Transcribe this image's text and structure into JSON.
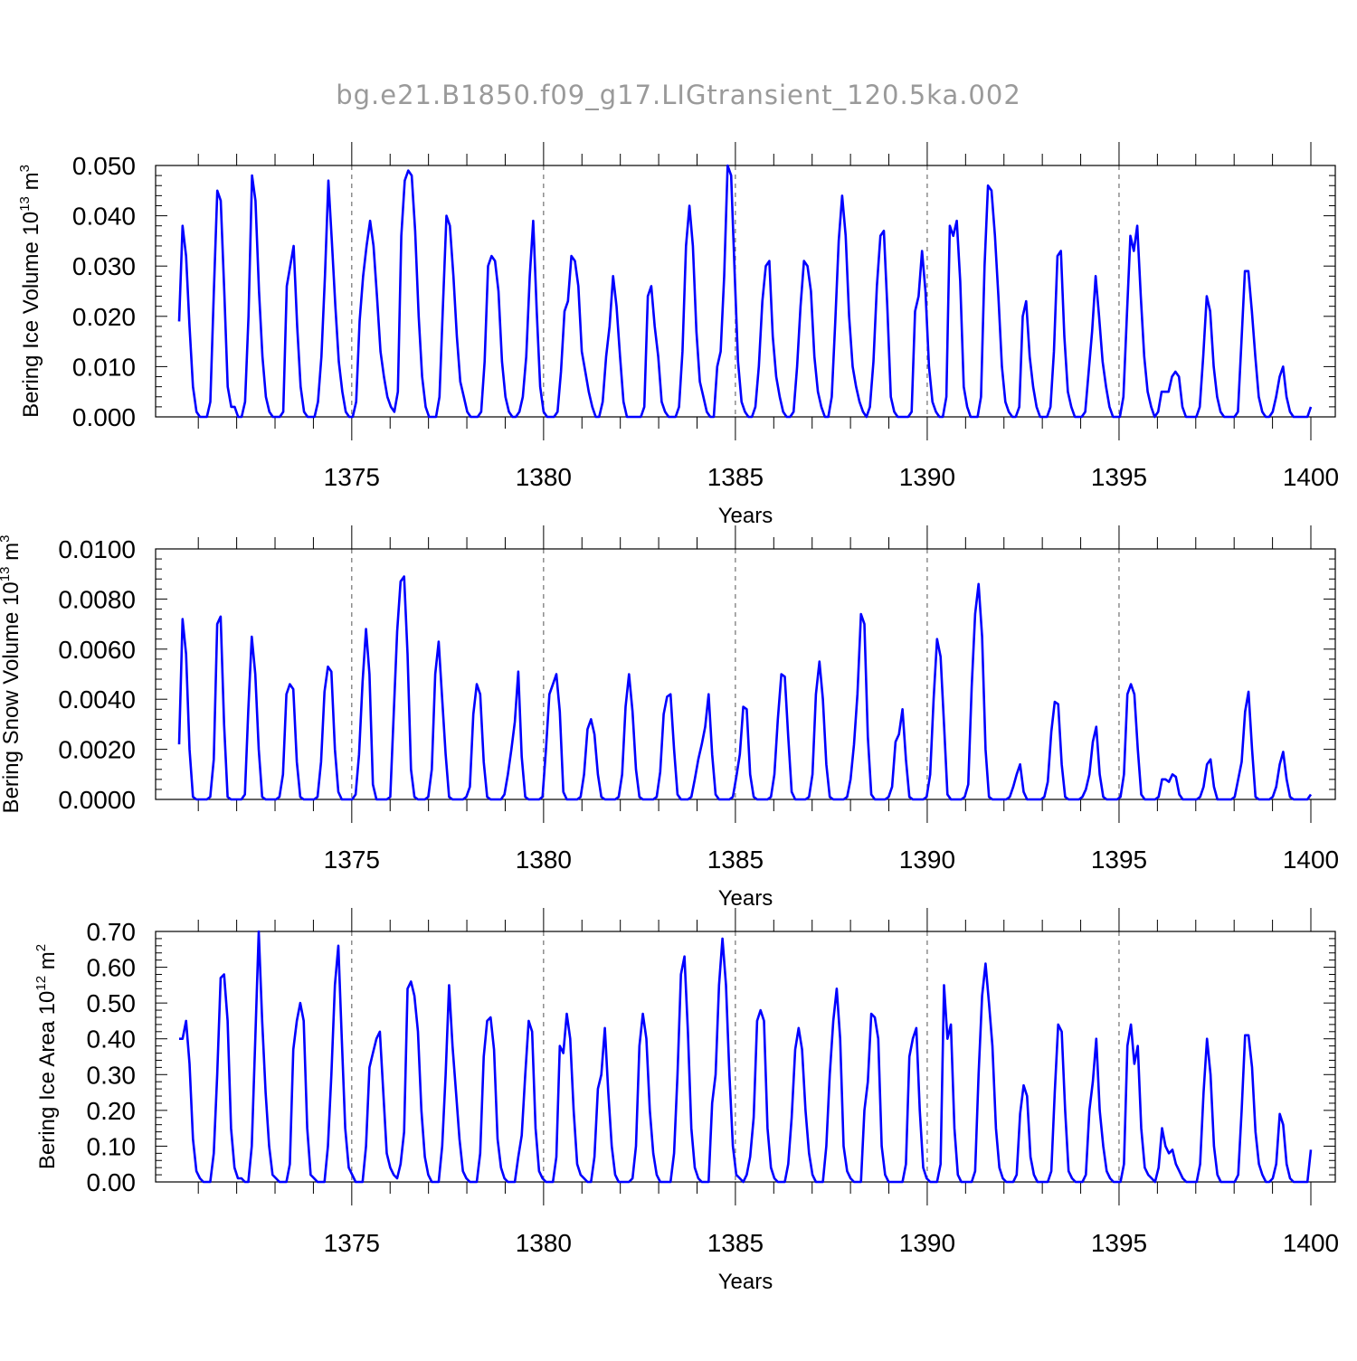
{
  "title": "bg.e21.B1850.f09_g17.LIGtransient_120.5ka.002",
  "colors": {
    "series": "#0000ff",
    "axis": "#000000",
    "grid": "#555555",
    "title": "#9a9a9a"
  },
  "chart_data": [
    {
      "type": "line",
      "title": "bg.e21.B1850.f09_g17.LIGtransient_120.5ka.002",
      "xlabel": "Years",
      "ylabel": "Bering Ice Volume 10",
      "ylabel_sup": "13",
      "ylabel_unit": "m",
      "ylabel_unit_sup": "3",
      "xlim": [
        1370.5,
        1400.0
      ],
      "ylim": [
        0,
        0.05
      ],
      "yticks": [
        "0.000",
        "0.010",
        "0.020",
        "0.030",
        "0.040",
        "0.050"
      ],
      "xticks": [
        "1375",
        "1380",
        "1385",
        "1390",
        "1395",
        "1400"
      ],
      "grid": "vertical dashed at major x ticks",
      "series": [
        {
          "values": [
            0.019,
            0.038,
            0.032,
            0.018,
            0.006,
            0.001,
            0,
            0,
            0,
            0.003,
            0.025,
            0.045,
            0.043,
            0.025,
            0.006,
            0.002,
            0.002,
            0,
            0,
            0.003,
            0.02,
            0.048,
            0.043,
            0.025,
            0.012,
            0.004,
            0.001,
            0,
            0,
            0,
            0.001,
            0.026,
            0.03,
            0.034,
            0.018,
            0.006,
            0.001,
            0,
            0,
            0,
            0.003,
            0.012,
            0.028,
            0.047,
            0.035,
            0.022,
            0.011,
            0.005,
            0.001,
            0,
            0,
            0.003,
            0.019,
            0.028,
            0.034,
            0.039,
            0.034,
            0.024,
            0.013,
            0.008,
            0.004,
            0.002,
            0.001,
            0.005,
            0.036,
            0.047,
            0.049,
            0.048,
            0.037,
            0.02,
            0.008,
            0.002,
            0,
            0,
            0,
            0.004,
            0.022,
            0.04,
            0.038,
            0.028,
            0.016,
            0.007,
            0.004,
            0.001,
            0,
            0,
            0,
            0.001,
            0.011,
            0.03,
            0.032,
            0.031,
            0.025,
            0.011,
            0.004,
            0.001,
            0,
            0,
            0.001,
            0.004,
            0.012,
            0.028,
            0.039,
            0.021,
            0.006,
            0.001,
            0,
            0,
            0,
            0.001,
            0.009,
            0.021,
            0.023,
            0.032,
            0.031,
            0.026,
            0.013,
            0.009,
            0.005,
            0.002,
            0,
            0,
            0.003,
            0.012,
            0.018,
            0.028,
            0.022,
            0.012,
            0.003,
            0,
            0,
            0,
            0,
            0,
            0.002,
            0.024,
            0.026,
            0.018,
            0.012,
            0.003,
            0.001,
            0,
            0,
            0,
            0.002,
            0.013,
            0.034,
            0.042,
            0.034,
            0.017,
            0.007,
            0.004,
            0.001,
            0,
            0,
            0.01,
            0.013,
            0.028,
            0.05,
            0.048,
            0.029,
            0.011,
            0.003,
            0.001,
            0,
            0,
            0.002,
            0.01,
            0.023,
            0.03,
            0.031,
            0.016,
            0.008,
            0.004,
            0.001,
            0,
            0,
            0.001,
            0.01,
            0.022,
            0.031,
            0.03,
            0.025,
            0.012,
            0.005,
            0.002,
            0,
            0,
            0.004,
            0.019,
            0.035,
            0.044,
            0.036,
            0.02,
            0.01,
            0.006,
            0.003,
            0.001,
            0,
            0.002,
            0.011,
            0.026,
            0.036,
            0.037,
            0.022,
            0.004,
            0.001,
            0,
            0,
            0,
            0,
            0.001,
            0.021,
            0.024,
            0.033,
            0.025,
            0.01,
            0.003,
            0.001,
            0,
            0,
            0.004,
            0.038,
            0.036,
            0.039,
            0.027,
            0.006,
            0.002,
            0,
            0,
            0,
            0.004,
            0.03,
            0.046,
            0.045,
            0.036,
            0.024,
            0.01,
            0.003,
            0.001,
            0,
            0,
            0.002,
            0.02,
            0.023,
            0.012,
            0.006,
            0.002,
            0,
            0,
            0,
            0.002,
            0.013,
            0.032,
            0.033,
            0.016,
            0.005,
            0.002,
            0,
            0,
            0,
            0.001,
            0.009,
            0.017,
            0.028,
            0.02,
            0.011,
            0.006,
            0.002,
            0,
            0,
            0,
            0.004,
            0.02,
            0.036,
            0.033,
            0.038,
            0.024,
            0.012,
            0.005,
            0.002,
            0,
            0.001,
            0.005,
            0.005,
            0.005,
            0.008,
            0.009,
            0.008,
            0.002,
            0,
            0,
            0,
            0,
            0.002,
            0.012,
            0.024,
            0.021,
            0.01,
            0.004,
            0.001,
            0,
            0,
            0,
            0,
            0.001,
            0.015,
            0.029,
            0.029,
            0.021,
            0.012,
            0.004,
            0.001,
            0,
            0,
            0.001,
            0.004,
            0.008,
            0.01,
            0.004,
            0.001,
            0,
            0,
            0,
            0,
            0,
            0.002
          ]
        }
      ]
    },
    {
      "type": "line",
      "xlabel": "Years",
      "ylabel": "Bering Snow Volume 10",
      "ylabel_sup": "13",
      "ylabel_unit": "m",
      "ylabel_unit_sup": "3",
      "xlim": [
        1370.5,
        1400.0
      ],
      "ylim": [
        0,
        0.01
      ],
      "yticks": [
        "0.0000",
        "0.0020",
        "0.0040",
        "0.0060",
        "0.0080",
        "0.0100"
      ],
      "xticks": [
        "1375",
        "1380",
        "1385",
        "1390",
        "1395",
        "1400"
      ],
      "grid": "vertical dashed at major x ticks",
      "series": [
        {
          "values": [
            0.0022,
            0.0072,
            0.0058,
            0.002,
            0.0001,
            0,
            0,
            0,
            0,
            0.0001,
            0.0016,
            0.007,
            0.0073,
            0.003,
            0.0001,
            0,
            0,
            0,
            0,
            0.0002,
            0.0036,
            0.0065,
            0.005,
            0.002,
            0.0001,
            0,
            0,
            0,
            0,
            0.0001,
            0.001,
            0.0042,
            0.0046,
            0.0044,
            0.0015,
            0.0001,
            0,
            0,
            0,
            0,
            0.0001,
            0.0015,
            0.0043,
            0.0053,
            0.0051,
            0.002,
            0.0003,
            0,
            0,
            0,
            0,
            0.0002,
            0.0018,
            0.0047,
            0.0068,
            0.005,
            0.0006,
            0,
            0,
            0,
            0,
            0.0001,
            0.0034,
            0.0067,
            0.0087,
            0.0089,
            0.0058,
            0.0012,
            0.0001,
            0,
            0,
            0,
            0.0001,
            0.0012,
            0.005,
            0.0063,
            0.004,
            0.0018,
            0.0001,
            0,
            0,
            0,
            0,
            0.0001,
            0.0005,
            0.0034,
            0.0046,
            0.0042,
            0.0015,
            0.0001,
            0,
            0,
            0,
            0,
            0.0002,
            0.001,
            0.002,
            0.0031,
            0.0051,
            0.0017,
            0.0001,
            0,
            0,
            0,
            0,
            0.0001,
            0.002,
            0.0042,
            0.0046,
            0.005,
            0.0035,
            0.0003,
            0,
            0,
            0,
            0,
            0.0001,
            0.001,
            0.0028,
            0.0032,
            0.0026,
            0.001,
            0.0001,
            0,
            0,
            0,
            0,
            0.0001,
            0.001,
            0.0037,
            0.005,
            0.0035,
            0.0012,
            0.0001,
            0,
            0,
            0,
            0,
            0.0001,
            0.0011,
            0.0034,
            0.0041,
            0.0042,
            0.002,
            0.0002,
            0,
            0,
            0,
            0.0001,
            0.0008,
            0.0016,
            0.0022,
            0.0029,
            0.0042,
            0.0018,
            0.0002,
            0,
            0,
            0,
            0,
            0.0001,
            0.0009,
            0.0018,
            0.0037,
            0.0036,
            0.001,
            0.0001,
            0,
            0,
            0,
            0,
            0.0001,
            0.001,
            0.0032,
            0.005,
            0.0049,
            0.0025,
            0.0003,
            0,
            0,
            0,
            0,
            0.0001,
            0.001,
            0.0042,
            0.0055,
            0.004,
            0.0014,
            0.0001,
            0,
            0,
            0,
            0,
            0.0001,
            0.0008,
            0.0022,
            0.0042,
            0.0074,
            0.007,
            0.0025,
            0.0002,
            0,
            0,
            0,
            0,
            0.0001,
            0.0005,
            0.0023,
            0.0026,
            0.0036,
            0.0016,
            0.0001,
            0,
            0,
            0,
            0,
            0.0001,
            0.001,
            0.004,
            0.0064,
            0.0057,
            0.003,
            0.0002,
            0,
            0,
            0,
            0,
            0.0001,
            0.0006,
            0.0045,
            0.0074,
            0.0086,
            0.0065,
            0.002,
            0.0001,
            0,
            0,
            0,
            0,
            0,
            0.0001,
            0.0005,
            0.001,
            0.0014,
            0.0003,
            0,
            0,
            0,
            0,
            0,
            0.0001,
            0.0007,
            0.0027,
            0.0039,
            0.0038,
            0.0014,
            0.0001,
            0,
            0,
            0,
            0,
            0.0001,
            0.0004,
            0.001,
            0.0023,
            0.0029,
            0.001,
            0.0001,
            0,
            0,
            0,
            0,
            0.0001,
            0.001,
            0.0042,
            0.0046,
            0.0042,
            0.002,
            0.0002,
            0,
            0,
            0,
            0,
            0.0001,
            0.0008,
            0.0008,
            0.0007,
            0.001,
            0.0009,
            0.0002,
            0,
            0,
            0,
            0,
            0,
            0.0001,
            0.0005,
            0.0014,
            0.0016,
            0.0005,
            0,
            0,
            0,
            0,
            0,
            0.0001,
            0.0008,
            0.0015,
            0.0035,
            0.0043,
            0.002,
            0.0001,
            0,
            0,
            0,
            0,
            0.0001,
            0.0005,
            0.0014,
            0.0019,
            0.0008,
            0.0001,
            0,
            0,
            0,
            0,
            0,
            0.0002
          ]
        }
      ]
    },
    {
      "type": "line",
      "xlabel": "Years",
      "ylabel": "Bering Ice Area 10",
      "ylabel_sup": "12",
      "ylabel_unit": "m",
      "ylabel_unit_sup": "2",
      "xlim": [
        1370.5,
        1400.0
      ],
      "ylim": [
        0,
        0.7
      ],
      "yticks": [
        "0.00",
        "0.10",
        "0.20",
        "0.30",
        "0.40",
        "0.50",
        "0.60",
        "0.70"
      ],
      "xticks": [
        "1375",
        "1380",
        "1385",
        "1390",
        "1395",
        "1400"
      ],
      "grid": "vertical dashed at major x ticks",
      "series": [
        {
          "values": [
            0.4,
            0.4,
            0.45,
            0.33,
            0.12,
            0.03,
            0.01,
            0,
            0,
            0,
            0.08,
            0.3,
            0.57,
            0.58,
            0.45,
            0.15,
            0.04,
            0.01,
            0.01,
            0,
            0,
            0.1,
            0.4,
            0.7,
            0.45,
            0.25,
            0.1,
            0.02,
            0.01,
            0,
            0,
            0,
            0.05,
            0.37,
            0.45,
            0.5,
            0.45,
            0.15,
            0.02,
            0.01,
            0,
            0,
            0,
            0.1,
            0.3,
            0.55,
            0.66,
            0.4,
            0.15,
            0.04,
            0.02,
            0,
            0,
            0,
            0.1,
            0.32,
            0.36,
            0.4,
            0.42,
            0.25,
            0.08,
            0.04,
            0.02,
            0.01,
            0.05,
            0.14,
            0.54,
            0.56,
            0.52,
            0.42,
            0.2,
            0.07,
            0.02,
            0,
            0,
            0,
            0.1,
            0.3,
            0.55,
            0.38,
            0.25,
            0.12,
            0.03,
            0.01,
            0,
            0,
            0,
            0.08,
            0.35,
            0.45,
            0.46,
            0.37,
            0.12,
            0.04,
            0.01,
            0,
            0,
            0,
            0.07,
            0.13,
            0.3,
            0.45,
            0.42,
            0.15,
            0.03,
            0.01,
            0,
            0,
            0,
            0.07,
            0.38,
            0.36,
            0.47,
            0.4,
            0.2,
            0.05,
            0.02,
            0.01,
            0,
            0,
            0.07,
            0.26,
            0.3,
            0.43,
            0.25,
            0.1,
            0.02,
            0,
            0,
            0,
            0,
            0.01,
            0.1,
            0.38,
            0.47,
            0.4,
            0.2,
            0.08,
            0.02,
            0,
            0,
            0,
            0,
            0.08,
            0.3,
            0.58,
            0.63,
            0.42,
            0.15,
            0.04,
            0.01,
            0,
            0,
            0,
            0.22,
            0.3,
            0.55,
            0.68,
            0.55,
            0.3,
            0.1,
            0.02,
            0.01,
            0,
            0.02,
            0.07,
            0.18,
            0.45,
            0.48,
            0.45,
            0.15,
            0.04,
            0.01,
            0,
            0,
            0,
            0.05,
            0.18,
            0.37,
            0.43,
            0.37,
            0.2,
            0.08,
            0.02,
            0,
            0,
            0,
            0.1,
            0.3,
            0.45,
            0.54,
            0.4,
            0.1,
            0.03,
            0.01,
            0,
            0,
            0,
            0.2,
            0.28,
            0.47,
            0.46,
            0.4,
            0.1,
            0.02,
            0,
            0,
            0,
            0,
            0,
            0.05,
            0.35,
            0.4,
            0.43,
            0.2,
            0.04,
            0.01,
            0,
            0,
            0,
            0.05,
            0.55,
            0.4,
            0.44,
            0.15,
            0.02,
            0,
            0,
            0,
            0,
            0.03,
            0.3,
            0.52,
            0.61,
            0.5,
            0.38,
            0.15,
            0.04,
            0.01,
            0,
            0,
            0,
            0.02,
            0.19,
            0.27,
            0.24,
            0.07,
            0.02,
            0,
            0,
            0,
            0,
            0.03,
            0.25,
            0.44,
            0.42,
            0.2,
            0.03,
            0.01,
            0,
            0,
            0,
            0.02,
            0.2,
            0.28,
            0.4,
            0.2,
            0.1,
            0.03,
            0.01,
            0,
            0,
            0,
            0.05,
            0.38,
            0.44,
            0.33,
            0.38,
            0.15,
            0.04,
            0.02,
            0.01,
            0,
            0.04,
            0.15,
            0.1,
            0.08,
            0.09,
            0.05,
            0.03,
            0.01,
            0,
            0,
            0,
            0,
            0.05,
            0.25,
            0.4,
            0.3,
            0.1,
            0.02,
            0,
            0,
            0,
            0,
            0,
            0.02,
            0.2,
            0.41,
            0.41,
            0.32,
            0.14,
            0.05,
            0.02,
            0,
            0,
            0.01,
            0.05,
            0.19,
            0.16,
            0.05,
            0.01,
            0,
            0,
            0,
            0,
            0,
            0.09
          ]
        }
      ]
    }
  ]
}
